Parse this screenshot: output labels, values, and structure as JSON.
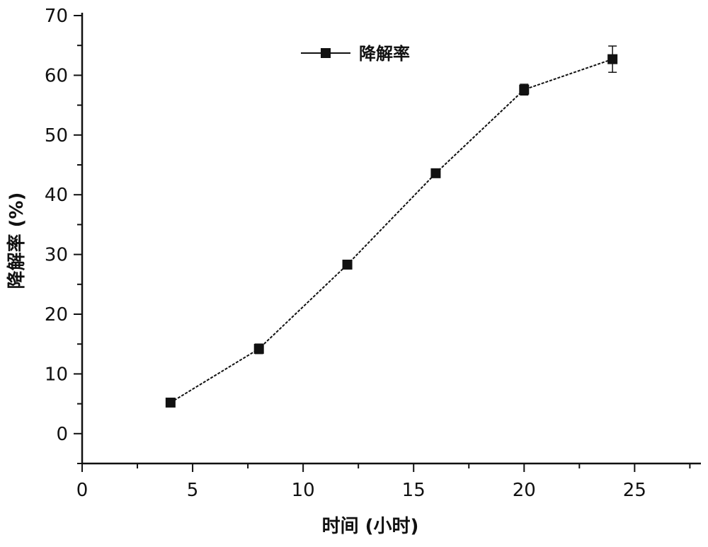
{
  "chart_data": {
    "type": "line",
    "title": "",
    "xlabel": "时间 (小时)",
    "ylabel": "降解率 (%)",
    "xlim": [
      0,
      28
    ],
    "ylim": [
      -5,
      70
    ],
    "xticks": [
      0,
      5,
      10,
      15,
      20,
      25
    ],
    "yticks": [
      0,
      10,
      20,
      30,
      40,
      50,
      60,
      70
    ],
    "grid": false,
    "legend_position": "top-center",
    "series": [
      {
        "name": "降解率",
        "color": "#111111",
        "marker": "square",
        "line_style": "dashed",
        "x": [
          4,
          8,
          12,
          16,
          20,
          24
        ],
        "y": [
          5.2,
          14.2,
          28.3,
          43.6,
          57.6,
          62.7
        ],
        "error": [
          0.3,
          0.8,
          0.4,
          0.5,
          0.9,
          2.2
        ]
      }
    ]
  }
}
